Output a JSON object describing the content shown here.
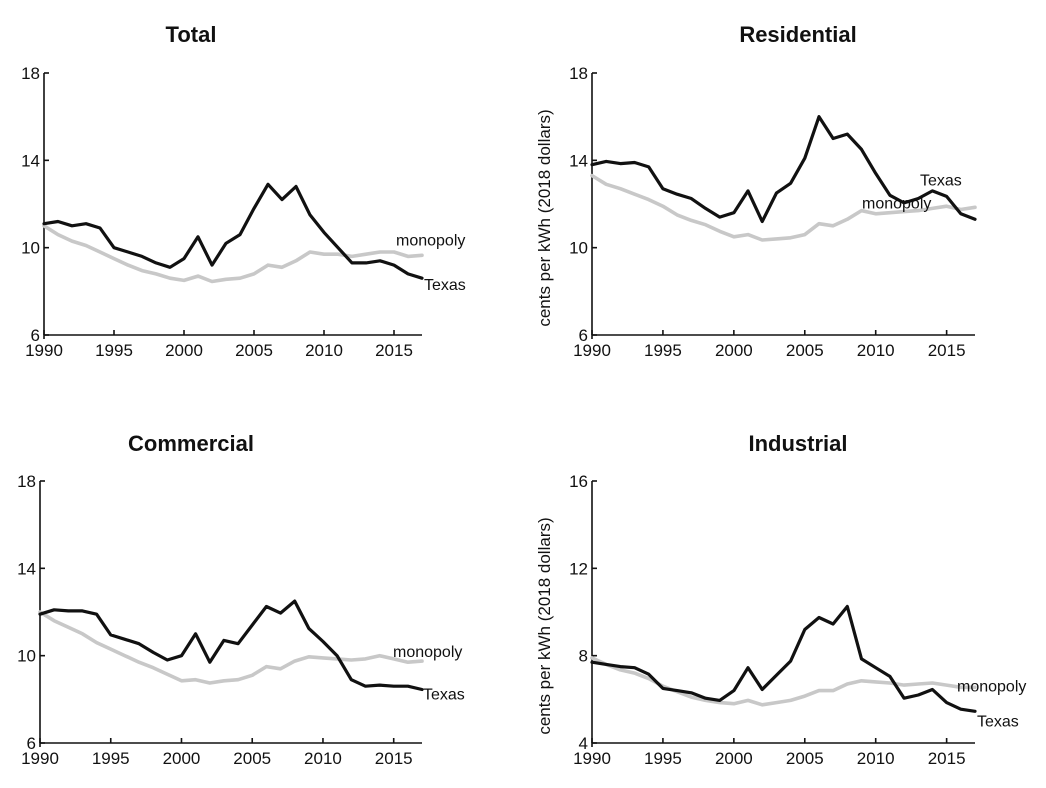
{
  "colors": {
    "texas": "#111111",
    "monopoly": "#c8c8c8"
  },
  "chart_data": [
    {
      "type": "line",
      "title": "Total",
      "ylabel": "",
      "ylim": [
        6,
        18
      ],
      "yticks": [
        6,
        10,
        14,
        18
      ],
      "xlim": [
        1990,
        2017
      ],
      "xticks": [
        1990,
        1995,
        2000,
        2005,
        2010,
        2015
      ],
      "grid": false,
      "x": [
        1990,
        1991,
        1992,
        1993,
        1994,
        1995,
        1996,
        1997,
        1998,
        1999,
        2000,
        2001,
        2002,
        2003,
        2004,
        2005,
        2006,
        2007,
        2008,
        2009,
        2010,
        2011,
        2012,
        2013,
        2014,
        2015,
        2016,
        2017
      ],
      "series": [
        {
          "name": "Texas",
          "key": "texas",
          "values": [
            11.1,
            11.2,
            11.0,
            11.1,
            10.9,
            10.0,
            9.8,
            9.6,
            9.3,
            9.1,
            9.5,
            10.5,
            9.2,
            10.2,
            10.6,
            11.8,
            12.9,
            12.2,
            12.8,
            11.5,
            10.7,
            10.0,
            9.3,
            9.3,
            9.4,
            9.2,
            8.8,
            8.6
          ]
        },
        {
          "name": "monopoly",
          "key": "monopoly",
          "values": [
            11.0,
            10.6,
            10.3,
            10.1,
            9.8,
            9.5,
            9.2,
            8.95,
            8.8,
            8.6,
            8.5,
            8.7,
            8.45,
            8.55,
            8.6,
            8.8,
            9.2,
            9.1,
            9.4,
            9.8,
            9.7,
            9.7,
            9.6,
            9.7,
            9.8,
            9.8,
            9.6,
            9.65
          ]
        }
      ],
      "annotations": [
        {
          "text": "monopoly",
          "series": "monopoly"
        },
        {
          "text": "Texas",
          "series": "texas"
        }
      ]
    },
    {
      "type": "line",
      "title": "Residential",
      "ylabel": "cents per kWh (2018 dollars)",
      "ylim": [
        6,
        18
      ],
      "yticks": [
        6,
        10,
        14,
        18
      ],
      "xlim": [
        1990,
        2017
      ],
      "xticks": [
        1990,
        1995,
        2000,
        2005,
        2010,
        2015
      ],
      "grid": false,
      "x": [
        1990,
        1991,
        1992,
        1993,
        1994,
        1995,
        1996,
        1997,
        1998,
        1999,
        2000,
        2001,
        2002,
        2003,
        2004,
        2005,
        2006,
        2007,
        2008,
        2009,
        2010,
        2011,
        2012,
        2013,
        2014,
        2015,
        2016,
        2017
      ],
      "series": [
        {
          "name": "Texas",
          "key": "texas",
          "values": [
            13.8,
            13.95,
            13.85,
            13.9,
            13.7,
            12.7,
            12.45,
            12.25,
            11.8,
            11.4,
            11.6,
            12.6,
            11.2,
            12.5,
            12.95,
            14.1,
            16.0,
            15.0,
            15.2,
            14.5,
            13.4,
            12.4,
            12.05,
            12.25,
            12.6,
            12.35,
            11.55,
            11.3
          ]
        },
        {
          "name": "monopoly",
          "key": "monopoly",
          "values": [
            13.3,
            12.9,
            12.7,
            12.45,
            12.2,
            11.9,
            11.5,
            11.25,
            11.05,
            10.75,
            10.5,
            10.6,
            10.35,
            10.4,
            10.45,
            10.6,
            11.1,
            11.0,
            11.3,
            11.7,
            11.55,
            11.6,
            11.65,
            11.7,
            11.8,
            11.9,
            11.75,
            11.85
          ]
        }
      ],
      "annotations": [
        {
          "text": "Texas",
          "series": "texas"
        },
        {
          "text": "monopoly",
          "series": "monopoly"
        }
      ]
    },
    {
      "type": "line",
      "title": "Commercial",
      "ylabel": "",
      "ylim": [
        6,
        18
      ],
      "yticks": [
        6,
        10,
        14,
        18
      ],
      "xlim": [
        1990,
        2017
      ],
      "xticks": [
        1990,
        1995,
        2000,
        2005,
        2010,
        2015
      ],
      "grid": false,
      "x": [
        1990,
        1991,
        1992,
        1993,
        1994,
        1995,
        1996,
        1997,
        1998,
        1999,
        2000,
        2001,
        2002,
        2003,
        2004,
        2005,
        2006,
        2007,
        2008,
        2009,
        2010,
        2011,
        2012,
        2013,
        2014,
        2015,
        2016,
        2017
      ],
      "series": [
        {
          "name": "Texas",
          "key": "texas",
          "values": [
            11.9,
            12.1,
            12.05,
            12.05,
            11.9,
            10.95,
            10.75,
            10.55,
            10.15,
            9.8,
            10.0,
            11.0,
            9.7,
            10.7,
            10.55,
            11.4,
            12.25,
            11.95,
            12.5,
            11.25,
            10.65,
            10.0,
            8.9,
            8.6,
            8.65,
            8.6,
            8.6,
            8.45
          ]
        },
        {
          "name": "monopoly",
          "key": "monopoly",
          "values": [
            12.0,
            11.6,
            11.3,
            11.0,
            10.6,
            10.3,
            10.0,
            9.7,
            9.45,
            9.15,
            8.85,
            8.9,
            8.75,
            8.85,
            8.9,
            9.1,
            9.5,
            9.4,
            9.75,
            9.95,
            9.9,
            9.85,
            9.8,
            9.85,
            10.0,
            9.85,
            9.7,
            9.75
          ]
        }
      ],
      "annotations": [
        {
          "text": "monopoly",
          "series": "monopoly"
        },
        {
          "text": "Texas",
          "series": "texas"
        }
      ]
    },
    {
      "type": "line",
      "title": "Industrial",
      "ylabel": "cents per kWh (2018 dollars)",
      "ylim": [
        4,
        16
      ],
      "yticks": [
        4,
        8,
        12,
        16
      ],
      "xlim": [
        1990,
        2017
      ],
      "xticks": [
        1990,
        1995,
        2000,
        2005,
        2010,
        2015
      ],
      "grid": false,
      "x": [
        1990,
        1991,
        1992,
        1993,
        1994,
        1995,
        1996,
        1997,
        1998,
        1999,
        2000,
        2001,
        2002,
        2003,
        2004,
        2005,
        2006,
        2007,
        2008,
        2009,
        2010,
        2011,
        2012,
        2013,
        2014,
        2015,
        2016,
        2017
      ],
      "series": [
        {
          "name": "Texas",
          "key": "texas",
          "values": [
            7.7,
            7.6,
            7.5,
            7.45,
            7.15,
            6.5,
            6.4,
            6.3,
            6.05,
            5.95,
            6.4,
            7.45,
            6.45,
            7.1,
            7.75,
            9.2,
            9.75,
            9.45,
            10.25,
            7.85,
            7.45,
            7.05,
            6.05,
            6.2,
            6.45,
            5.85,
            5.55,
            5.45
          ]
        },
        {
          "name": "monopoly",
          "key": "monopoly",
          "values": [
            7.9,
            7.6,
            7.35,
            7.2,
            6.95,
            6.6,
            6.35,
            6.1,
            5.95,
            5.85,
            5.8,
            5.95,
            5.75,
            5.85,
            5.95,
            6.15,
            6.4,
            6.4,
            6.7,
            6.85,
            6.8,
            6.75,
            6.65,
            6.7,
            6.75,
            6.65,
            6.55,
            6.55
          ]
        }
      ],
      "annotations": [
        {
          "text": "monopoly",
          "series": "monopoly"
        },
        {
          "text": "Texas",
          "series": "texas"
        }
      ]
    }
  ]
}
